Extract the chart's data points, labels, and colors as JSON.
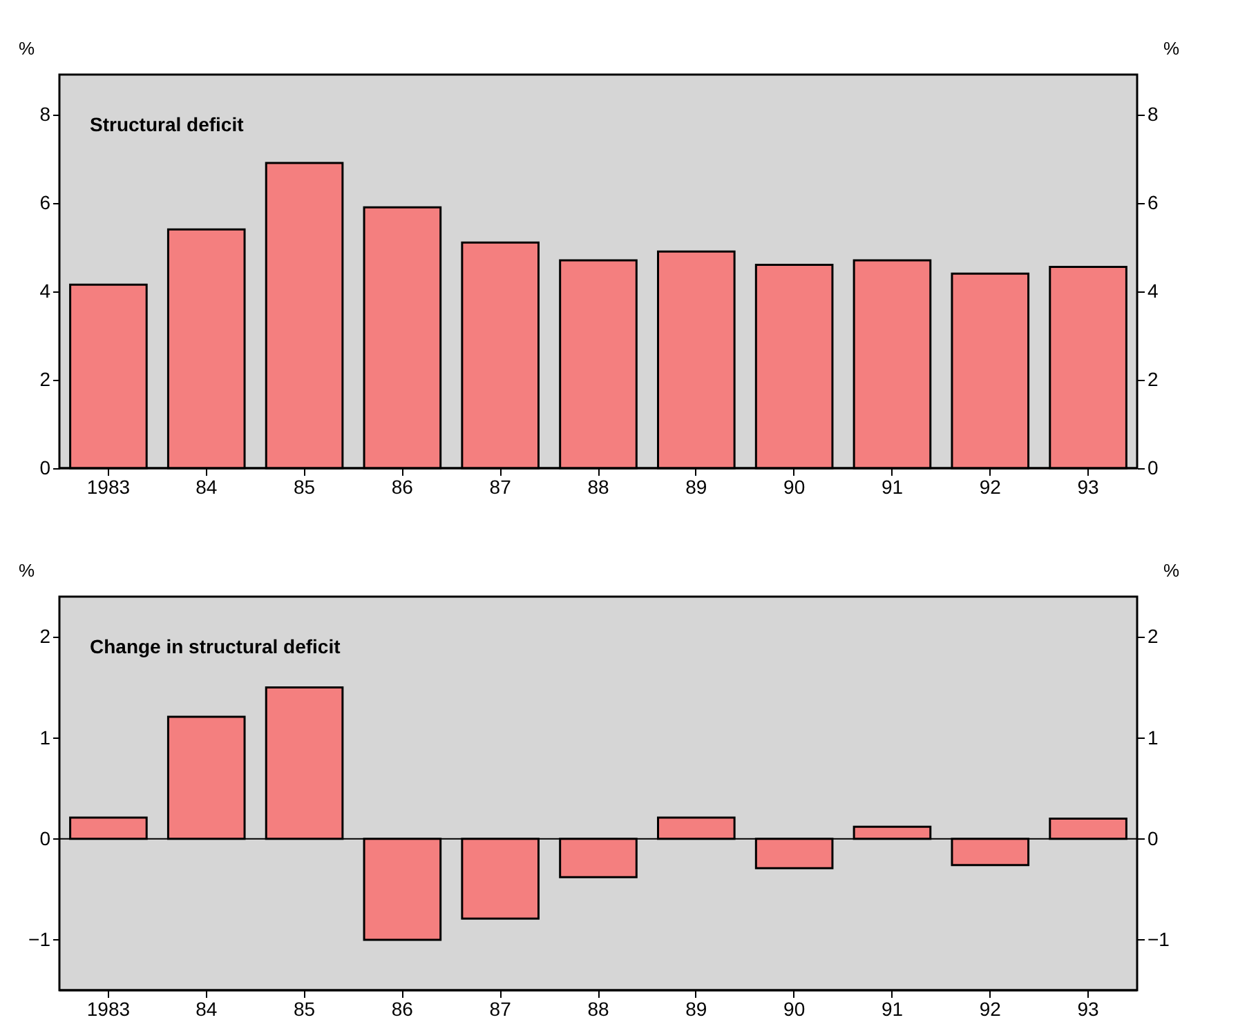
{
  "chart_data": [
    {
      "type": "bar",
      "title": "Structural deficit",
      "categories": [
        "1983",
        "84",
        "85",
        "86",
        "87",
        "88",
        "89",
        "90",
        "91",
        "92",
        "93"
      ],
      "values": [
        4.15,
        5.4,
        6.9,
        5.9,
        5.1,
        4.7,
        4.9,
        4.6,
        4.7,
        4.4,
        4.55
      ],
      "color": "#f47f7f",
      "ylabel": "%",
      "y2label": "%",
      "ylim": [
        0,
        8.9
      ],
      "yticks": [
        0,
        2,
        4,
        6,
        8
      ],
      "y2lim": [
        0,
        8.9
      ],
      "y2ticks": [
        0,
        2,
        4,
        6,
        8
      ],
      "grid": false
    },
    {
      "type": "bar",
      "title": "Change in structural deficit",
      "categories": [
        "1983",
        "84",
        "85",
        "86",
        "87",
        "88",
        "89",
        "90",
        "91",
        "92",
        "93"
      ],
      "values": [
        0.21,
        1.21,
        1.5,
        -1.0,
        -0.79,
        -0.38,
        0.21,
        -0.29,
        0.12,
        -0.26,
        0.2
      ],
      "color": "#f47f7f",
      "ylabel": "%",
      "y2label": "%",
      "ylim": [
        -1.5,
        2.4
      ],
      "yticks": [
        -1,
        0,
        1,
        2
      ],
      "y2lim": [
        -1.5,
        2.4
      ],
      "y2ticks": [
        -1,
        0,
        1,
        2
      ],
      "grid": false,
      "ref_lines": [
        {
          "axis": "y",
          "value": 0,
          "color": "#000000"
        }
      ]
    }
  ]
}
